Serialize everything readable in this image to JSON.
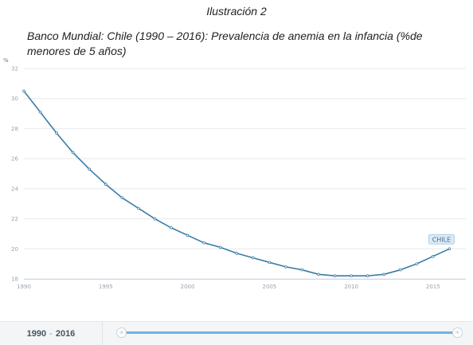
{
  "caption": {
    "number": "Ilustración 2",
    "title": "Banco Mundial: Chile (1990 – 2016): Prevalencia de anemia en la infancia (%de menores de 5 años)"
  },
  "chart_data": {
    "type": "line",
    "unit_label": "%",
    "x": [
      1990,
      1991,
      1992,
      1993,
      1994,
      1995,
      1996,
      1997,
      1998,
      1999,
      2000,
      2001,
      2002,
      2003,
      2004,
      2005,
      2006,
      2007,
      2008,
      2009,
      2010,
      2011,
      2012,
      2013,
      2014,
      2015,
      2016
    ],
    "series": [
      {
        "name": "CHILE",
        "color": "#3a7ca5",
        "values": [
          30.5,
          29.1,
          27.7,
          26.4,
          25.3,
          24.3,
          23.4,
          22.7,
          22.0,
          21.4,
          20.9,
          20.4,
          20.1,
          19.7,
          19.4,
          19.1,
          18.8,
          18.6,
          18.3,
          18.2,
          18.2,
          18.2,
          18.3,
          18.6,
          19.0,
          19.5,
          20.0
        ]
      }
    ],
    "ylim": [
      18,
      32
    ],
    "yticks": [
      18,
      20,
      22,
      24,
      26,
      28,
      30,
      32
    ],
    "xlim": [
      1990,
      2017
    ],
    "xticks": [
      1990,
      1995,
      2000,
      2005,
      2010,
      2015
    ],
    "grid": true,
    "legend": "end-of-line label"
  },
  "footer": {
    "range_start": "1990",
    "range_end": "2016",
    "range_separator": "-",
    "handle_glyph": "III"
  },
  "colors": {
    "line": "#3a7ca5",
    "grid": "#e6e9ec",
    "slider": "#6db3e8",
    "tag_bg": "#dceaf5"
  }
}
